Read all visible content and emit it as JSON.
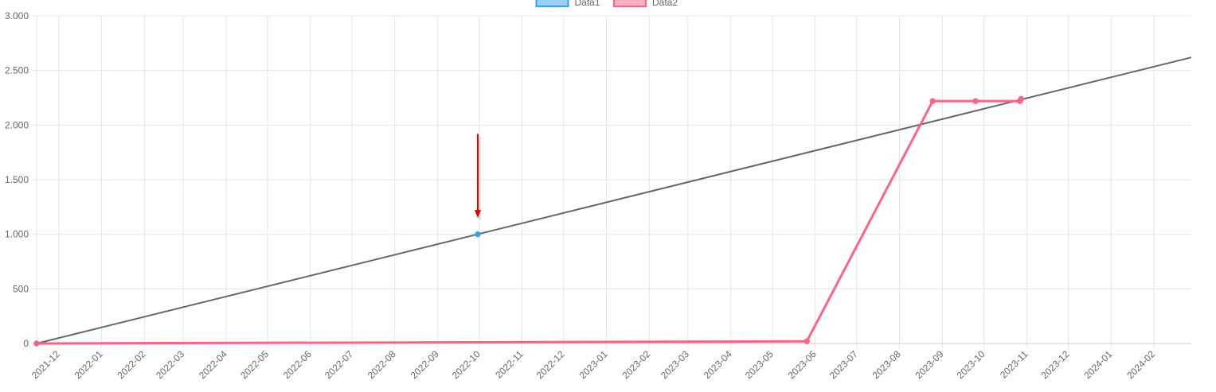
{
  "chart_data": {
    "type": "line",
    "legend": {
      "placement": "top-center",
      "items": [
        {
          "label": "Data1",
          "fill": "#9ad0f5",
          "stroke": "#36a2eb"
        },
        {
          "label": "Data2",
          "fill": "#ffb1c1",
          "stroke": "#ff6384"
        }
      ]
    },
    "y_axis": {
      "min": 0,
      "max": 3000,
      "ticks": [
        {
          "value": 3000,
          "label": "3.000"
        },
        {
          "value": 2500,
          "label": "2.500"
        },
        {
          "value": 2000,
          "label": "2.000"
        },
        {
          "value": 1500,
          "label": "1.500"
        },
        {
          "value": 1000,
          "label": "1.000"
        },
        {
          "value": 500,
          "label": "500"
        },
        {
          "value": 0,
          "label": "0"
        }
      ]
    },
    "x_axis": {
      "type": "time",
      "min": "2021-11-15",
      "max": "2024-02-28",
      "ticks": [
        "2021-12",
        "2022-01",
        "2022-02",
        "2022-03",
        "2022-04",
        "2022-05",
        "2022-06",
        "2022-07",
        "2022-08",
        "2022-09",
        "2022-10",
        "2022-11",
        "2022-12",
        "2023-01",
        "2023-02",
        "2023-03",
        "2023-04",
        "2023-05",
        "2023-06",
        "2023-07",
        "2023-08",
        "2023-09",
        "2023-10",
        "2023-11",
        "2023-12",
        "2024-01",
        "2024-02"
      ]
    },
    "grid": true,
    "series": [
      {
        "name": "Data1",
        "color": "#36a2eb",
        "points": [
          {
            "x": "2022-09-30",
            "y": 1000
          }
        ]
      },
      {
        "name": "Data2",
        "color": "#ff6384",
        "points": [
          {
            "x": "2021-11-15",
            "y": 0
          },
          {
            "x": "2023-05-26",
            "y": 20
          },
          {
            "x": "2023-08-25",
            "y": 2220
          },
          {
            "x": "2023-09-25",
            "y": 2220
          },
          {
            "x": "2023-10-27",
            "y": 2220
          },
          {
            "x": "2023-10-28",
            "y": 2240
          }
        ]
      },
      {
        "color": "#666666",
        "points": [
          {
            "x": "2021-11-15",
            "y": 0
          },
          {
            "x": "2024-02-28",
            "y": 2620
          }
        ]
      }
    ],
    "annotations": [
      {
        "type": "arrow",
        "color": "#e00000",
        "x": "2022-09-30",
        "y_from": 1920,
        "y_to": 1150
      }
    ]
  }
}
